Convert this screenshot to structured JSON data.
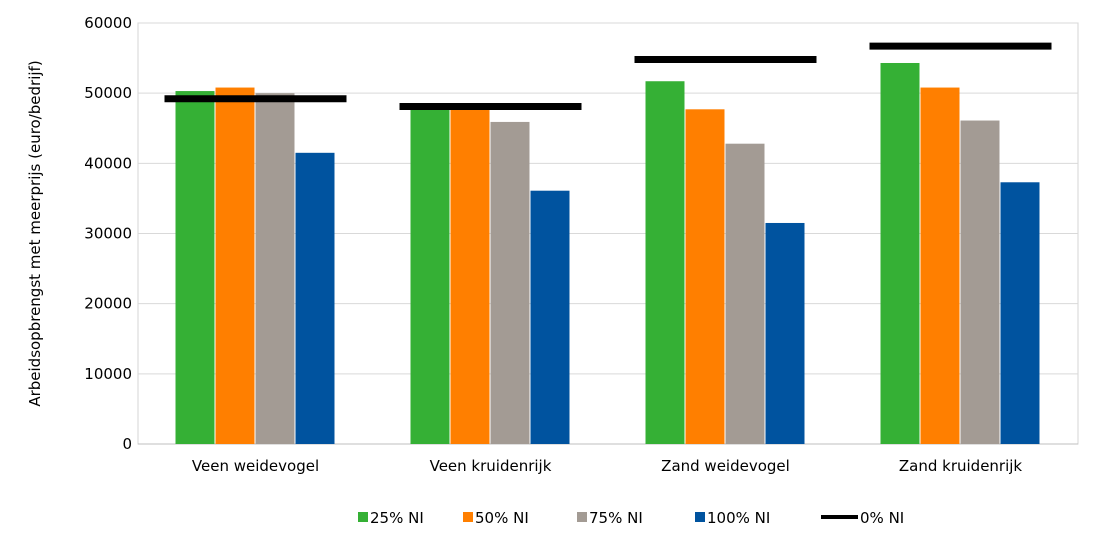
{
  "chart_data": {
    "type": "bar",
    "title": "",
    "xlabel": "",
    "ylabel": "Arbeidsopbrengst met meerprijs (euro/bedrijf)",
    "ylim": [
      0,
      60000
    ],
    "yticks": [
      0,
      10000,
      20000,
      30000,
      40000,
      50000,
      60000
    ],
    "grid": true,
    "legend_position": "bottom",
    "categories": [
      "Veen weidevogel",
      "Veen kruidenrijk",
      "Zand weidevogel",
      "Zand kruidenrijk"
    ],
    "series": [
      {
        "name": "25% NI",
        "color": "#35b035",
        "values": [
          50300,
          48000,
          51700,
          54300
        ]
      },
      {
        "name": "50% NI",
        "color": "#ff7f00",
        "values": [
          50800,
          48000,
          47700,
          50800
        ]
      },
      {
        "name": "75% NI",
        "color": "#a39b94",
        "values": [
          50000,
          45900,
          42800,
          46100
        ]
      },
      {
        "name": "100% NI",
        "color": "#00539f",
        "values": [
          41500,
          36100,
          31500,
          37300
        ]
      }
    ],
    "reference": {
      "name": "0% NI",
      "color": "#000000",
      "values": [
        49200,
        48100,
        54800,
        56700
      ]
    }
  }
}
